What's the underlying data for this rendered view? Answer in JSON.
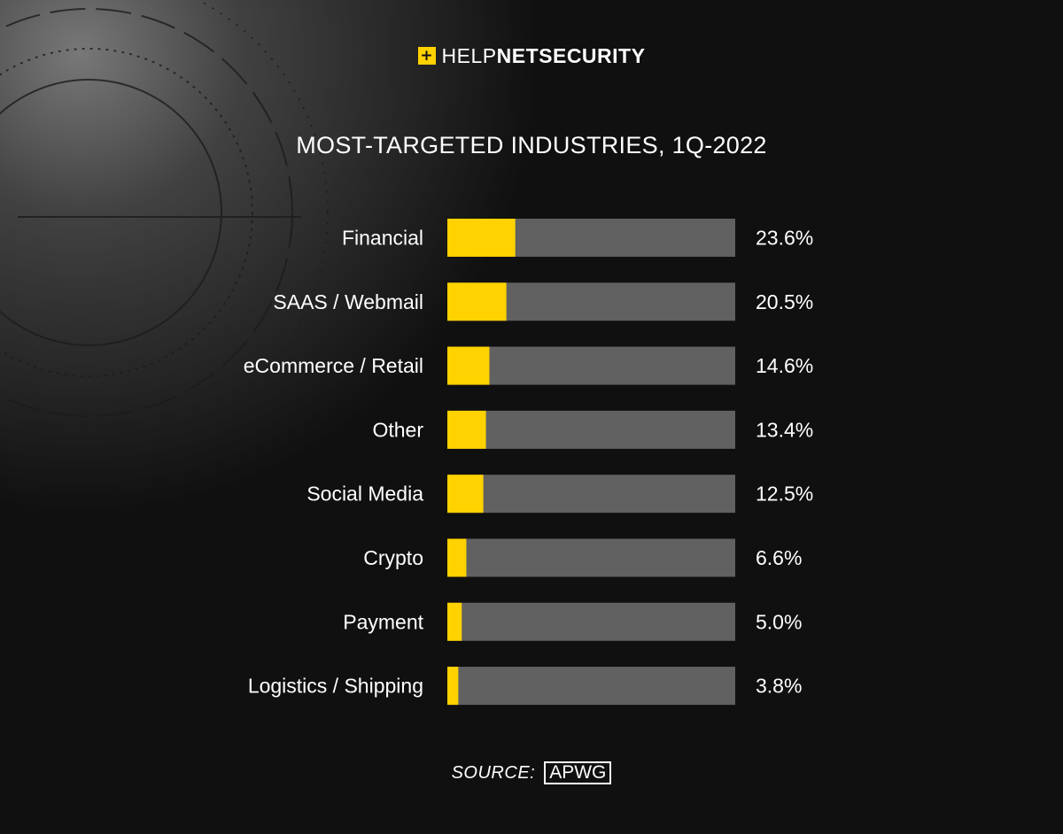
{
  "brand": {
    "mark": "+",
    "help": "HELP",
    "net": "NET",
    "security": "SECURITY"
  },
  "source": {
    "label": "SOURCE:",
    "org": "APWG"
  },
  "colors": {
    "background": "#0f0f0f",
    "bar_fill": "#ffd200",
    "bar_track": "#616161",
    "text": "#ffffff"
  },
  "chart_data": {
    "type": "bar",
    "orientation": "horizontal",
    "title": "MOST-TARGETED INDUSTRIES, 1Q-2022",
    "categories": [
      "Financial",
      "SAAS / Webmail",
      "eCommerce / Retail",
      "Other",
      "Social Media",
      "Crypto",
      "Payment",
      "Logistics / Shipping"
    ],
    "values": [
      23.6,
      20.5,
      14.6,
      13.4,
      12.5,
      6.6,
      5.0,
      3.8
    ],
    "value_labels": [
      "23.6%",
      "20.5%",
      "14.6%",
      "13.4%",
      "12.5%",
      "6.6%",
      "5.0%",
      "3.8%"
    ],
    "unit": "%",
    "xlim": [
      0,
      100
    ],
    "grid": false,
    "legend": "none"
  }
}
